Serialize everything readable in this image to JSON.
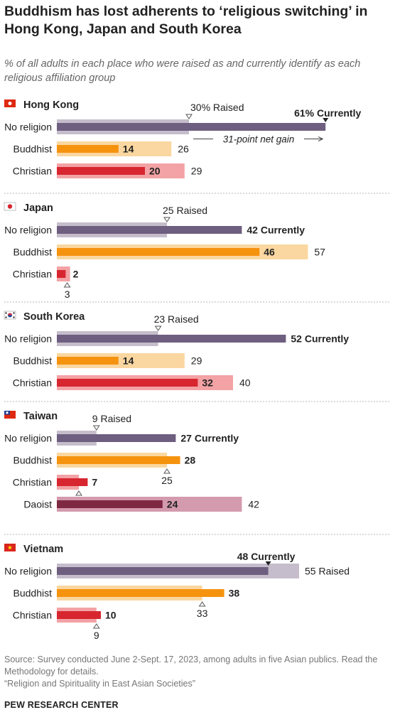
{
  "title": "Buddhism has lost adherents to ‘religious switching’ in Hong Kong, Japan and South Korea",
  "subtitle": "% of all adults in each place who were raised as and currently identify as each religious affiliation group",
  "footer": {
    "source": "Source: Survey conducted June 2-Sept. 17, 2023, among adults in five Asian publics. Read the Methodology for details.",
    "report": "“Religion and Spirituality in East Asian Societies”",
    "brand": "PEW RESEARCH CENTER"
  },
  "colors": {
    "No religion": {
      "current": "#6e5e7f",
      "raised": "#c5bdcb"
    },
    "Buddhist": {
      "current": "#f5930f",
      "raised": "#fad7a0"
    },
    "Christian": {
      "current": "#d7262f",
      "raised": "#f3a2a5"
    },
    "Daoist": {
      "current": "#7e2842",
      "raised": "#d49aad"
    }
  },
  "chart_data": {
    "type": "bar",
    "xlim": [
      0,
      61
    ],
    "series_meaning": {
      "current": "Currently",
      "raised": "Raised"
    },
    "panels": [
      {
        "place": "Hong Kong",
        "flag": "hong-kong",
        "rows": [
          {
            "category": "No religion",
            "current": 61,
            "raised": 30,
            "current_label": "61% Currently",
            "raised_label": "30% Raised"
          },
          {
            "category": "Buddhist",
            "current": 14,
            "raised": 26
          },
          {
            "category": "Christian",
            "current": 20,
            "raised": 29
          }
        ],
        "annotation": "31-point net gain"
      },
      {
        "place": "Japan",
        "flag": "japan",
        "rows": [
          {
            "category": "No religion",
            "current": 42,
            "raised": 25,
            "current_label": "42 Currently",
            "raised_label": "25 Raised"
          },
          {
            "category": "Buddhist",
            "current": 46,
            "raised": 57
          },
          {
            "category": "Christian",
            "current": 2,
            "raised": 3
          }
        ]
      },
      {
        "place": "South Korea",
        "flag": "south-korea",
        "rows": [
          {
            "category": "No religion",
            "current": 52,
            "raised": 23,
            "current_label": "52 Currently",
            "raised_label": "23 Raised"
          },
          {
            "category": "Buddhist",
            "current": 14,
            "raised": 29
          },
          {
            "category": "Christian",
            "current": 32,
            "raised": 40
          }
        ]
      },
      {
        "place": "Taiwan",
        "flag": "taiwan",
        "rows": [
          {
            "category": "No religion",
            "current": 27,
            "raised": 9,
            "current_label": "27 Currently",
            "raised_label": "9 Raised"
          },
          {
            "category": "Buddhist",
            "current": 28,
            "raised": 25
          },
          {
            "category": "Christian",
            "current": 7,
            "raised": 5
          },
          {
            "category": "Daoist",
            "current": 24,
            "raised": 42
          }
        ]
      },
      {
        "place": "Vietnam",
        "flag": "vietnam",
        "rows": [
          {
            "category": "No religion",
            "current": 48,
            "raised": 55,
            "current_label": "48 Currently",
            "raised_label": "55 Raised"
          },
          {
            "category": "Buddhist",
            "current": 38,
            "raised": 33
          },
          {
            "category": "Christian",
            "current": 10,
            "raised": 9
          }
        ]
      }
    ]
  }
}
